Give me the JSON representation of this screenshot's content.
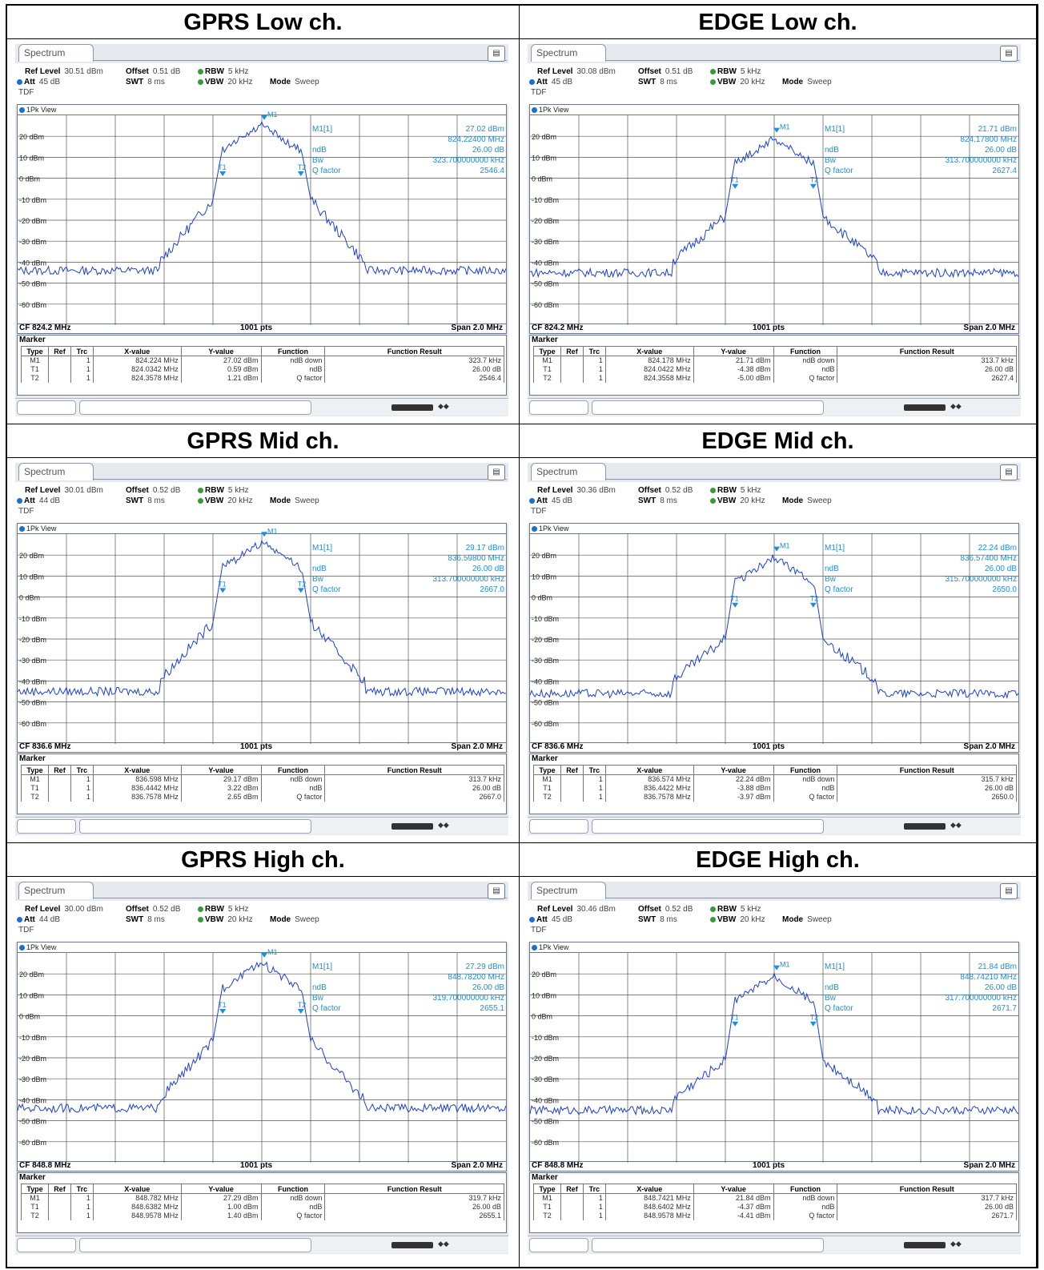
{
  "colors": {
    "trace": "#1c3fd8",
    "marker": "#1e8ed8",
    "grid": "#333333"
  },
  "icons": {
    "toolbar": "toolbar-icon",
    "view_dot": "view-dot-icon"
  },
  "panels": [
    {
      "id": "gprs-low",
      "title": "GPRS Low ch.",
      "tab": "Spectrum",
      "ref_level_label": "Ref Level",
      "ref_level": "30.51 dBm",
      "offset_label": "Offset",
      "offset": "0.51 dB",
      "rbw_label": "RBW",
      "rbw": "5 kHz",
      "att_label": "Att",
      "att": "45 dB",
      "swt_label": "SWT",
      "swt": "8 ms",
      "vbw_label": "VBW",
      "vbw": "20 kHz",
      "mode_label": "Mode",
      "mode": "Sweep",
      "tdf": "TDF",
      "view": "1Pk View",
      "cf": "CF 824.2 MHz",
      "pts": "1001 pts",
      "span": "Span 2.0 MHz",
      "m1_label": "M1[1]",
      "m1_y": "27.02 dBm",
      "m1_x": "824.22400 MHz",
      "ndb_label": "ndB",
      "ndb": "26.00 dB",
      "bw_label": "Bw",
      "bw": "323.700000000 kHz",
      "qf_label": "Q factor",
      "qf": "2546.4",
      "peak_db": 27,
      "shoulder_db": -10,
      "edge_db": -40,
      "floor_db": -44,
      "t1_label": "T1",
      "t2_label": "T2",
      "m1_mark": "M1",
      "marker_title": "Marker",
      "headers": [
        "Type",
        "Ref",
        "Trc",
        "X-value",
        "Y-value",
        "Function",
        "Function Result"
      ],
      "rows": [
        {
          "type": "M1",
          "ref": "",
          "trc": "1",
          "x": "824.224 MHz",
          "y": "27.02 dBm",
          "func": "ndB down",
          "result": "323.7 kHz"
        },
        {
          "type": "T1",
          "ref": "",
          "trc": "1",
          "x": "824.0342 MHz",
          "y": "0.59 dBm",
          "func": "ndB",
          "result": "26.00 dB"
        },
        {
          "type": "T2",
          "ref": "",
          "trc": "1",
          "x": "824.3578 MHz",
          "y": "1.21 dBm",
          "func": "Q factor",
          "result": "2546.4"
        }
      ]
    },
    {
      "id": "edge-low",
      "title": "EDGE Low ch.",
      "tab": "Spectrum",
      "ref_level_label": "Ref Level",
      "ref_level": "30.08 dBm",
      "offset_label": "Offset",
      "offset": "0.51 dB",
      "rbw_label": "RBW",
      "rbw": "5 kHz",
      "att_label": "Att",
      "att": "45 dB",
      "swt_label": "SWT",
      "swt": "8 ms",
      "vbw_label": "VBW",
      "vbw": "20 kHz",
      "mode_label": "Mode",
      "mode": "Sweep",
      "tdf": "TDF",
      "view": "1Pk View",
      "cf": "CF 824.2 MHz",
      "pts": "1001 pts",
      "span": "Span 2.0 MHz",
      "m1_label": "M1[1]",
      "m1_y": "21.71 dBm",
      "m1_x": "824.17800 MHz",
      "ndb_label": "ndB",
      "ndb": "26.00 dB",
      "bw_label": "Bw",
      "bw": "313.700000000 kHz",
      "qf_label": "Q factor",
      "qf": "2627.4",
      "peak_db": 21,
      "shoulder_db": -18,
      "edge_db": -40,
      "floor_db": -45,
      "t1_label": "T1",
      "t2_label": "T2",
      "m1_mark": "M1",
      "marker_title": "Marker",
      "headers": [
        "Type",
        "Ref",
        "Trc",
        "X-value",
        "Y-value",
        "Function",
        "Function Result"
      ],
      "rows": [
        {
          "type": "M1",
          "ref": "",
          "trc": "1",
          "x": "824.178 MHz",
          "y": "21.71 dBm",
          "func": "ndB down",
          "result": "313.7 kHz"
        },
        {
          "type": "T1",
          "ref": "",
          "trc": "1",
          "x": "824.0422 MHz",
          "y": "-4.38 dBm",
          "func": "ndB",
          "result": "26.00 dB"
        },
        {
          "type": "T2",
          "ref": "",
          "trc": "1",
          "x": "824.3558 MHz",
          "y": "-5.00 dBm",
          "func": "Q factor",
          "result": "2627.4"
        }
      ]
    },
    {
      "id": "gprs-mid",
      "title": "GPRS Mid ch.",
      "tab": "Spectrum",
      "ref_level_label": "Ref Level",
      "ref_level": "30.01 dBm",
      "offset_label": "Offset",
      "offset": "0.52 dB",
      "rbw_label": "RBW",
      "rbw": "5 kHz",
      "att_label": "Att",
      "att": "44 dB",
      "swt_label": "SWT",
      "swt": "8 ms",
      "vbw_label": "VBW",
      "vbw": "20 kHz",
      "mode_label": "Mode",
      "mode": "Sweep",
      "tdf": "TDF",
      "view": "1Pk View",
      "cf": "CF 836.6 MHz",
      "pts": "1001 pts",
      "span": "Span 2.0 MHz",
      "m1_label": "M1[1]",
      "m1_y": "29.17 dBm",
      "m1_x": "836.59800 MHz",
      "ndb_label": "ndB",
      "ndb": "26.00 dB",
      "bw_label": "Bw",
      "bw": "313.700000000 kHz",
      "qf_label": "Q factor",
      "qf": "2667.0",
      "peak_db": 28,
      "shoulder_db": -12,
      "edge_db": -40,
      "floor_db": -45,
      "t1_label": "T1",
      "t2_label": "T2",
      "m1_mark": "M1",
      "marker_title": "Marker",
      "headers": [
        "Type",
        "Ref",
        "Trc",
        "X-value",
        "Y-value",
        "Function",
        "Function Result"
      ],
      "rows": [
        {
          "type": "M1",
          "ref": "",
          "trc": "1",
          "x": "836.598 MHz",
          "y": "29.17 dBm",
          "func": "ndB down",
          "result": "313.7 kHz"
        },
        {
          "type": "T1",
          "ref": "",
          "trc": "1",
          "x": "836.4442 MHz",
          "y": "3.22 dBm",
          "func": "ndB",
          "result": "26.00 dB"
        },
        {
          "type": "T2",
          "ref": "",
          "trc": "1",
          "x": "836.7578 MHz",
          "y": "2.65 dBm",
          "func": "Q factor",
          "result": "2667.0"
        }
      ]
    },
    {
      "id": "edge-mid",
      "title": "EDGE Mid ch.",
      "tab": "Spectrum",
      "ref_level_label": "Ref Level",
      "ref_level": "30.36 dBm",
      "offset_label": "Offset",
      "offset": "0.52 dB",
      "rbw_label": "RBW",
      "rbw": "5 kHz",
      "att_label": "Att",
      "att": "45 dB",
      "swt_label": "SWT",
      "swt": "8 ms",
      "vbw_label": "VBW",
      "vbw": "20 kHz",
      "mode_label": "Mode",
      "mode": "Sweep",
      "tdf": "TDF",
      "view": "1Pk View",
      "cf": "CF 836.6 MHz",
      "pts": "1001 pts",
      "span": "Span 2.0 MHz",
      "m1_label": "M1[1]",
      "m1_y": "22.24 dBm",
      "m1_x": "836.57400 MHz",
      "ndb_label": "ndB",
      "ndb": "26.00 dB",
      "bw_label": "Bw",
      "bw": "315.700000000 kHz",
      "qf_label": "Q factor",
      "qf": "2650.0",
      "peak_db": 21,
      "shoulder_db": -20,
      "edge_db": -40,
      "floor_db": -46,
      "t1_label": "T1",
      "t2_label": "T2",
      "m1_mark": "M1",
      "marker_title": "Marker",
      "headers": [
        "Type",
        "Ref",
        "Trc",
        "X-value",
        "Y-value",
        "Function",
        "Function Result"
      ],
      "rows": [
        {
          "type": "M1",
          "ref": "",
          "trc": "1",
          "x": "836.574 MHz",
          "y": "22.24 dBm",
          "func": "ndB down",
          "result": "315.7 kHz"
        },
        {
          "type": "T1",
          "ref": "",
          "trc": "1",
          "x": "836.4422 MHz",
          "y": "-3.88 dBm",
          "func": "ndB",
          "result": "26.00 dB"
        },
        {
          "type": "T2",
          "ref": "",
          "trc": "1",
          "x": "836.7578 MHz",
          "y": "-3.97 dBm",
          "func": "Q factor",
          "result": "2650.0"
        }
      ]
    },
    {
      "id": "gprs-high",
      "title": "GPRS High ch.",
      "tab": "Spectrum",
      "ref_level_label": "Ref Level",
      "ref_level": "30.00 dBm",
      "offset_label": "Offset",
      "offset": "0.52 dB",
      "rbw_label": "RBW",
      "rbw": "5 kHz",
      "att_label": "Att",
      "att": "44 dB",
      "swt_label": "SWT",
      "swt": "8 ms",
      "vbw_label": "VBW",
      "vbw": "20 kHz",
      "mode_label": "Mode",
      "mode": "Sweep",
      "tdf": "TDF",
      "view": "1Pk View",
      "cf": "CF 848.8 MHz",
      "pts": "1001 pts",
      "span": "Span 2.0 MHz",
      "m1_label": "M1[1]",
      "m1_y": "27.29 dBm",
      "m1_x": "848.78200 MHz",
      "ndb_label": "ndB",
      "ndb": "26.00 dB",
      "bw_label": "Bw",
      "bw": "319.700000000 kHz",
      "qf_label": "Q factor",
      "qf": "2655.1",
      "peak_db": 27,
      "shoulder_db": -12,
      "edge_db": -40,
      "floor_db": -44,
      "t1_label": "T1",
      "t2_label": "T2",
      "m1_mark": "M1",
      "marker_title": "Marker",
      "headers": [
        "Type",
        "Ref",
        "Trc",
        "X-value",
        "Y-value",
        "Function",
        "Function Result"
      ],
      "rows": [
        {
          "type": "M1",
          "ref": "",
          "trc": "1",
          "x": "848.782 MHz",
          "y": "27.29 dBm",
          "func": "ndB down",
          "result": "319.7 kHz"
        },
        {
          "type": "T1",
          "ref": "",
          "trc": "1",
          "x": "848.6382 MHz",
          "y": "1.00 dBm",
          "func": "ndB",
          "result": "26.00 dB"
        },
        {
          "type": "T2",
          "ref": "",
          "trc": "1",
          "x": "848.9578 MHz",
          "y": "1.40 dBm",
          "func": "Q factor",
          "result": "2655.1"
        }
      ]
    },
    {
      "id": "edge-high",
      "title": "EDGE High ch.",
      "tab": "Spectrum",
      "ref_level_label": "Ref Level",
      "ref_level": "30.46 dBm",
      "offset_label": "Offset",
      "offset": "0.52 dB",
      "rbw_label": "RBW",
      "rbw": "5 kHz",
      "att_label": "Att",
      "att": "45 dB",
      "swt_label": "SWT",
      "swt": "8 ms",
      "vbw_label": "VBW",
      "vbw": "20 kHz",
      "mode_label": "Mode",
      "mode": "Sweep",
      "tdf": "TDF",
      "view": "1Pk View",
      "cf": "CF 848.8 MHz",
      "pts": "1001 pts",
      "span": "Span 2.0 MHz",
      "m1_label": "M1[1]",
      "m1_y": "21.84 dBm",
      "m1_x": "848.74210 MHz",
      "ndb_label": "ndB",
      "ndb": "26.00 dB",
      "bw_label": "Bw",
      "bw": "317.700000000 kHz",
      "qf_label": "Q factor",
      "qf": "2671.7",
      "peak_db": 21,
      "shoulder_db": -21,
      "edge_db": -40,
      "floor_db": -45,
      "t1_label": "T1",
      "t2_label": "T2",
      "m1_mark": "M1",
      "marker_title": "Marker",
      "headers": [
        "Type",
        "Ref",
        "Trc",
        "X-value",
        "Y-value",
        "Function",
        "Function Result"
      ],
      "rows": [
        {
          "type": "M1",
          "ref": "",
          "trc": "1",
          "x": "848.7421 MHz",
          "y": "21.84 dBm",
          "func": "ndB down",
          "result": "317.7 kHz"
        },
        {
          "type": "T1",
          "ref": "",
          "trc": "1",
          "x": "848.6402 MHz",
          "y": "-4.37 dBm",
          "func": "ndB",
          "result": "26.00 dB"
        },
        {
          "type": "T2",
          "ref": "",
          "trc": "1",
          "x": "848.9578 MHz",
          "y": "-4.41 dBm",
          "func": "Q factor",
          "result": "2671.7"
        }
      ]
    }
  ],
  "y_axis_labels": [
    "20 dBm",
    "10 dBm",
    "0 dBm",
    "-10 dBm",
    "-20 dBm",
    "-30 dBm",
    "-40 dBm",
    "-50 dBm",
    "-60 dBm"
  ],
  "y_axis_values": [
    20,
    10,
    0,
    -10,
    -20,
    -30,
    -40,
    -50,
    -60
  ],
  "y_top_db": 30,
  "y_bottom_db": -70
}
